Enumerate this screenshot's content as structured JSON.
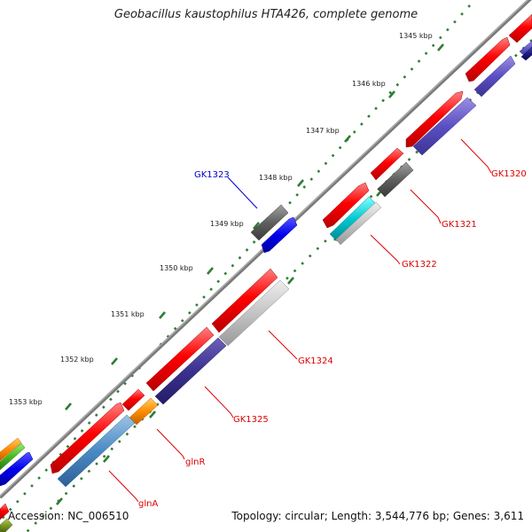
{
  "title": "Geobacillus kaustophilus HTA426, complete genome",
  "footer": {
    "accession": "Accession: NC_006510",
    "summary": "Topology: circular; Length: 3,544,776 bp; Genes: 3,611"
  },
  "ticks": [
    "1345 kbp",
    "1346 kbp",
    "1347 kbp",
    "1348 kbp",
    "1349 kbp",
    "1350 kbp",
    "1351 kbp",
    "1352 kbp",
    "1353 kbp"
  ],
  "genes": [
    "GK1320",
    "GK1321",
    "GK1322",
    "GK1323",
    "GK1324",
    "GK1325",
    "glnR",
    "glnA"
  ],
  "colors": {
    "cds": "#ff0000",
    "backbone": "#808080",
    "tick": "#2e7d32",
    "label_red": "#dd0000",
    "label_blue": "#0000cc"
  }
}
